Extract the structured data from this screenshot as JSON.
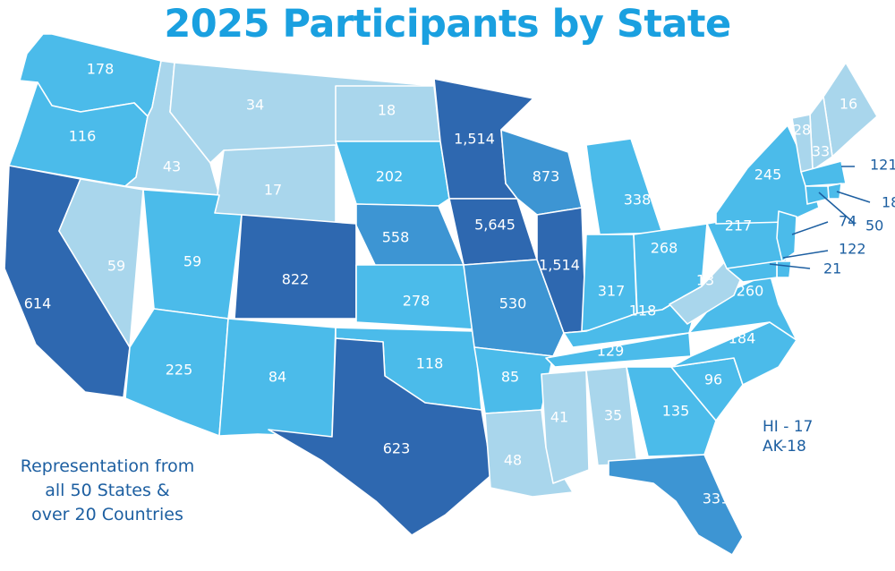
{
  "title": "2025 Participants by State",
  "note": [
    "Representation from",
    "all 50 States &",
    "over 20 Countries"
  ],
  "hawaii_alaska": [
    "HI - 17",
    "AK-18"
  ],
  "colors": {
    "title": "#1aa0e0",
    "note": "#1d5fa1",
    "tier_lightest": "#a9d6ec",
    "tier_light": "#4bbbea",
    "tier_medium": "#3d95d3",
    "tier_dark": "#2e68b0",
    "border": "#ffffff"
  },
  "states": [
    {
      "state": "WA",
      "label": "178",
      "tier": "light"
    },
    {
      "state": "OR",
      "label": "116",
      "tier": "light"
    },
    {
      "state": "CA",
      "label": "614",
      "tier": "dark"
    },
    {
      "state": "NV",
      "label": "59",
      "tier": "lightest"
    },
    {
      "state": "ID",
      "label": "43",
      "tier": "lightest"
    },
    {
      "state": "MT",
      "label": "34",
      "tier": "lightest"
    },
    {
      "state": "WY",
      "label": "17",
      "tier": "lightest"
    },
    {
      "state": "UT",
      "label": "59",
      "tier": "light"
    },
    {
      "state": "AZ",
      "label": "225",
      "tier": "light"
    },
    {
      "state": "CO",
      "label": "822",
      "tier": "dark"
    },
    {
      "state": "NM",
      "label": "84",
      "tier": "light"
    },
    {
      "state": "ND",
      "label": "18",
      "tier": "lightest"
    },
    {
      "state": "SD",
      "label": "202",
      "tier": "light"
    },
    {
      "state": "NE",
      "label": "558",
      "tier": "medium"
    },
    {
      "state": "KS",
      "label": "278",
      "tier": "light"
    },
    {
      "state": "OK",
      "label": "118",
      "tier": "light"
    },
    {
      "state": "TX",
      "label": "623",
      "tier": "dark"
    },
    {
      "state": "MN",
      "label": "1,514",
      "tier": "dark"
    },
    {
      "state": "IA",
      "label": "5,645",
      "tier": "dark"
    },
    {
      "state": "MO",
      "label": "530",
      "tier": "medium"
    },
    {
      "state": "AR",
      "label": "85",
      "tier": "light"
    },
    {
      "state": "LA",
      "label": "48",
      "tier": "lightest"
    },
    {
      "state": "WI",
      "label": "873",
      "tier": "medium"
    },
    {
      "state": "IL",
      "label": "1,514",
      "tier": "dark"
    },
    {
      "state": "MI",
      "label": "338",
      "tier": "light"
    },
    {
      "state": "IN",
      "label": "317",
      "tier": "light"
    },
    {
      "state": "OH",
      "label": "268",
      "tier": "light"
    },
    {
      "state": "KY",
      "label": "118",
      "tier": "light"
    },
    {
      "state": "TN",
      "label": "129",
      "tier": "light"
    },
    {
      "state": "MS",
      "label": "41",
      "tier": "lightest"
    },
    {
      "state": "AL",
      "label": "35",
      "tier": "lightest"
    },
    {
      "state": "GA",
      "label": "135",
      "tier": "light"
    },
    {
      "state": "FL",
      "label": "331",
      "tier": "medium"
    },
    {
      "state": "SC",
      "label": "96",
      "tier": "light"
    },
    {
      "state": "NC",
      "label": "184",
      "tier": "light"
    },
    {
      "state": "VA",
      "label": "260",
      "tier": "light"
    },
    {
      "state": "WV",
      "label": "13",
      "tier": "lightest"
    },
    {
      "state": "PA",
      "label": "217",
      "tier": "light"
    },
    {
      "state": "NY",
      "label": "245",
      "tier": "light"
    },
    {
      "state": "ME",
      "label": "16",
      "tier": "lightest"
    },
    {
      "state": "NH",
      "label": "33",
      "tier": "lightest"
    },
    {
      "state": "VT",
      "label": "28",
      "tier": "lightest"
    },
    {
      "state": "MA",
      "label": "121",
      "tier": "light"
    },
    {
      "state": "RI",
      "label": "18",
      "tier": "light"
    },
    {
      "state": "CT",
      "label": "50",
      "tier": "light"
    },
    {
      "state": "NJ",
      "label": "74",
      "tier": "light"
    },
    {
      "state": "DE",
      "label": "122",
      "tier": "light"
    },
    {
      "state": "MD",
      "label": "21",
      "tier": "light"
    }
  ]
}
